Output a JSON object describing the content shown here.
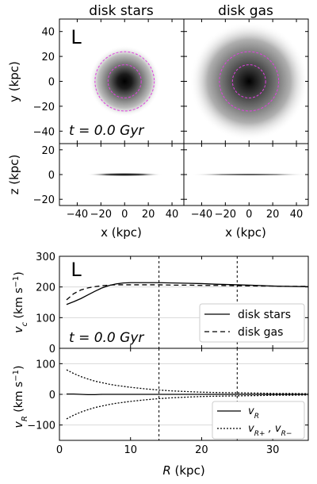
{
  "panels": {
    "stars_title": "disk stars",
    "gas_title": "disk gas",
    "label_top": "L",
    "time_top": "t = 0.0 Gyr",
    "ylabel_xy": "y (kpc)",
    "ylabel_xz": "z (kpc)",
    "xlabel_maps": "x (kpc)"
  },
  "colors": {
    "dashed_circle": "#e040e0",
    "density_dark": "#000000",
    "background": "#ffffff"
  },
  "chart_data": [
    {
      "type": "heatmap",
      "name": "disk stars face-on",
      "xlabel": "x (kpc)",
      "ylabel": "y (kpc)",
      "xlim": [
        -55,
        50
      ],
      "ylim": [
        -50,
        50
      ],
      "xticks": [
        -40,
        -20,
        0,
        20,
        40
      ],
      "yticks": [
        -40,
        -20,
        0,
        20,
        40
      ],
      "scale_length_kpc": 6,
      "extent_kpc": 30,
      "circles_kpc": [
        14,
        25
      ]
    },
    {
      "type": "heatmap",
      "name": "disk gas face-on",
      "xlabel": "x (kpc)",
      "xlim": [
        -55,
        50
      ],
      "ylim": [
        -50,
        50
      ],
      "xticks": [
        -40,
        -20,
        0,
        20,
        40
      ],
      "scale_length_kpc": 12,
      "extent_kpc": 50,
      "circles_kpc": [
        14,
        25
      ]
    },
    {
      "type": "heatmap",
      "name": "disk stars edge-on",
      "xlabel": "x (kpc)",
      "ylabel": "z (kpc)",
      "xlim": [
        -55,
        50
      ],
      "ylim": [
        -25,
        25
      ],
      "yticks": [
        -20,
        0,
        20
      ],
      "extent_kpc": 32
    },
    {
      "type": "heatmap",
      "name": "disk gas edge-on",
      "xlabel": "x (kpc)",
      "xlim": [
        -55,
        50
      ],
      "ylim": [
        -25,
        25
      ],
      "extent_kpc": 50
    },
    {
      "type": "line",
      "name": "rotation curve",
      "label": "L",
      "annotation": "t = 0.0 Gyr",
      "xlabel": "R (kpc)",
      "ylabel": "v_c (km s^-1)",
      "xlim": [
        0,
        35
      ],
      "ylim": [
        0,
        300
      ],
      "yticks": [
        0,
        100,
        200,
        300
      ],
      "legend_loc": "lower right",
      "vlines": [
        14,
        25
      ],
      "x": [
        1,
        2,
        3,
        4,
        5,
        6,
        7,
        8,
        9,
        10,
        12,
        14,
        16,
        18,
        20,
        22,
        25,
        28,
        30,
        32,
        35
      ],
      "series": [
        {
          "name": "disk stars",
          "style": "solid",
          "values": [
            143,
            152,
            162,
            174,
            186,
            197,
            205,
            210,
            213,
            214,
            214,
            214,
            213,
            212,
            211,
            209,
            207,
            205,
            203,
            202,
            201
          ]
        },
        {
          "name": "disk gas",
          "style": "dashed",
          "values": [
            158,
            178,
            190,
            197,
            201,
            204,
            206,
            207,
            207,
            207,
            207,
            207,
            206,
            206,
            205,
            205,
            204,
            203,
            203,
            202,
            202
          ]
        }
      ]
    },
    {
      "type": "line",
      "name": "radial velocity",
      "xlabel": "R (kpc)",
      "ylabel": "v_R (km s^-1)",
      "xlim": [
        0,
        35
      ],
      "ylim": [
        -150,
        150
      ],
      "yticks": [
        -100,
        0,
        100
      ],
      "xticks": [
        0,
        10,
        20,
        30
      ],
      "legend_loc": "lower right",
      "vlines": [
        14,
        25
      ],
      "x": [
        1,
        2,
        3,
        4,
        5,
        6,
        7,
        8,
        9,
        10,
        12,
        14,
        16,
        18,
        20,
        22,
        25,
        28,
        30,
        32,
        35
      ],
      "series": [
        {
          "name": "v_R",
          "style": "solid",
          "values": [
            1,
            1,
            0,
            -1,
            -1,
            0,
            0,
            0,
            0,
            0,
            0,
            0,
            0,
            0,
            0,
            0,
            0,
            0,
            0,
            0,
            0
          ]
        },
        {
          "name": "v_R+",
          "style": "dotted",
          "values": [
            80,
            68,
            58,
            50,
            43,
            38,
            33,
            29,
            26,
            23,
            18,
            14,
            11,
            9,
            7,
            6,
            5,
            4,
            3,
            3,
            2
          ]
        },
        {
          "name": "v_R-",
          "style": "dotted",
          "values": [
            -80,
            -68,
            -58,
            -50,
            -43,
            -38,
            -33,
            -29,
            -26,
            -23,
            -18,
            -14,
            -11,
            -9,
            -7,
            -6,
            -5,
            -4,
            -3,
            -3,
            -2
          ]
        }
      ],
      "legend": [
        {
          "label": "v_R",
          "style": "solid"
        },
        {
          "label": "v_R+ , v_R-",
          "style": "dotted"
        }
      ]
    }
  ]
}
